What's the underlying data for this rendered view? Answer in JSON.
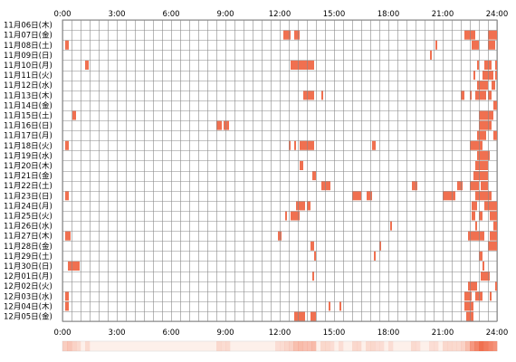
{
  "chart_data": {
    "type": "heatmap",
    "title": "",
    "x_ticks": [
      "0:00",
      "3:00",
      "6:00",
      "9:00",
      "12:00",
      "15:00",
      "18:00",
      "21:00",
      "24:00"
    ],
    "x_range_hours": [
      0,
      24
    ],
    "rows": [
      {
        "label": "11月06日(木)",
        "events": []
      },
      {
        "label": "11月07日(金)",
        "events": [
          [
            12.2,
            12.6
          ],
          [
            12.8,
            13.1
          ],
          [
            22.2,
            22.8
          ],
          [
            23.5,
            24.0
          ]
        ]
      },
      {
        "label": "11月08日(土)",
        "events": [
          [
            0.15,
            0.35
          ],
          [
            20.6,
            20.7
          ],
          [
            22.6,
            23.0
          ],
          [
            23.5,
            23.9
          ]
        ]
      },
      {
        "label": "11月09日(日)",
        "events": [
          [
            20.3,
            20.4
          ]
        ]
      },
      {
        "label": "11月10日(月)",
        "events": [
          [
            1.25,
            1.45
          ],
          [
            12.6,
            13.9
          ],
          [
            22.9,
            23.0
          ],
          [
            23.3,
            23.7
          ],
          [
            23.9,
            24.0
          ]
        ]
      },
      {
        "label": "11月11日(火)",
        "events": [
          [
            22.7,
            22.8
          ],
          [
            23.2,
            23.8
          ],
          [
            23.9,
            24.0
          ]
        ]
      },
      {
        "label": "11月12日(水)",
        "events": [
          [
            22.9,
            23.5
          ],
          [
            23.7,
            23.9
          ]
        ]
      },
      {
        "label": "11月13日(木)",
        "events": [
          [
            13.3,
            13.9
          ],
          [
            14.3,
            14.4
          ],
          [
            22.0,
            22.2
          ],
          [
            22.5,
            22.6
          ],
          [
            22.8,
            23.4
          ],
          [
            23.5,
            23.7
          ]
        ]
      },
      {
        "label": "11月14日(金)",
        "events": [
          [
            23.8,
            24.0
          ]
        ]
      },
      {
        "label": "11月15日(土)",
        "events": [
          [
            0.55,
            0.75
          ],
          [
            23.0,
            23.8
          ]
        ]
      },
      {
        "label": "11月16日(日)",
        "events": [
          [
            8.5,
            8.8
          ],
          [
            8.9,
            9.2
          ],
          [
            23.0,
            23.7
          ]
        ]
      },
      {
        "label": "11月17日(月)",
        "events": [
          [
            22.9,
            23.4
          ],
          [
            23.8,
            24.0
          ]
        ]
      },
      {
        "label": "11月18日(火)",
        "events": [
          [
            0.15,
            0.35
          ],
          [
            12.5,
            12.6
          ],
          [
            12.8,
            12.9
          ],
          [
            13.1,
            13.9
          ],
          [
            17.1,
            17.3
          ],
          [
            22.5,
            23.2
          ]
        ]
      },
      {
        "label": "11月19日(水)",
        "events": [
          [
            22.9,
            23.6
          ]
        ]
      },
      {
        "label": "11月20日(木)",
        "events": [
          [
            13.1,
            13.3
          ],
          [
            22.8,
            23.5
          ]
        ]
      },
      {
        "label": "11月21日(金)",
        "events": [
          [
            13.8,
            14.0
          ],
          [
            22.7,
            23.5
          ]
        ]
      },
      {
        "label": "11月22日(土)",
        "events": [
          [
            14.3,
            14.8
          ],
          [
            19.3,
            19.6
          ],
          [
            21.8,
            22.1
          ],
          [
            22.5,
            23.0
          ],
          [
            23.1,
            23.5
          ]
        ]
      },
      {
        "label": "11月23日(日)",
        "events": [
          [
            0.15,
            0.35
          ],
          [
            16.0,
            16.5
          ],
          [
            16.8,
            17.1
          ],
          [
            21.0,
            21.7
          ],
          [
            22.8,
            23.7
          ]
        ]
      },
      {
        "label": "11月24日(月)",
        "events": [
          [
            12.9,
            13.4
          ],
          [
            13.5,
            13.7
          ],
          [
            22.6,
            22.9
          ],
          [
            23.3,
            24.0
          ]
        ]
      },
      {
        "label": "11月25日(火)",
        "events": [
          [
            12.3,
            12.4
          ],
          [
            12.6,
            13.1
          ],
          [
            22.6,
            22.8
          ],
          [
            23.0,
            23.2
          ],
          [
            23.6,
            24.0
          ]
        ]
      },
      {
        "label": "11月26日(水)",
        "events": [
          [
            18.1,
            18.2
          ],
          [
            22.8,
            22.9
          ],
          [
            23.8,
            24.0
          ]
        ]
      },
      {
        "label": "11月27日(木)",
        "events": [
          [
            0.15,
            0.45
          ],
          [
            11.9,
            12.1
          ],
          [
            22.4,
            23.3
          ],
          [
            23.6,
            24.0
          ]
        ]
      },
      {
        "label": "11月28日(金)",
        "events": [
          [
            13.7,
            13.9
          ],
          [
            17.5,
            17.6
          ],
          [
            23.5,
            24.0
          ]
        ]
      },
      {
        "label": "11月29日(土)",
        "events": [
          [
            13.9,
            14.0
          ],
          [
            17.2,
            17.3
          ],
          [
            23.0,
            23.2
          ]
        ]
      },
      {
        "label": "11月30日(日)",
        "events": [
          [
            0.3,
            0.95
          ],
          [
            23.2,
            23.3
          ]
        ]
      },
      {
        "label": "12月01日(月)",
        "events": [
          [
            13.8,
            13.9
          ],
          [
            23.1,
            23.6
          ]
        ]
      },
      {
        "label": "12月02日(火)",
        "events": [
          [
            22.4,
            22.9
          ],
          [
            23.9,
            24.0
          ]
        ]
      },
      {
        "label": "12月03日(水)",
        "events": [
          [
            0.15,
            0.35
          ],
          [
            22.2,
            22.6
          ],
          [
            22.8,
            23.2
          ],
          [
            23.6,
            23.7
          ]
        ]
      },
      {
        "label": "12月04日(木)",
        "events": [
          [
            0.15,
            0.35
          ],
          [
            14.7,
            14.8
          ],
          [
            15.3,
            15.4
          ],
          [
            22.2,
            22.7
          ]
        ]
      },
      {
        "label": "12月05日(金)",
        "events": [
          [
            12.8,
            13.4
          ],
          [
            13.7,
            14.0
          ],
          [
            22.3,
            22.7
          ]
        ]
      }
    ],
    "colors": {
      "event_fill": "#f07050",
      "grid_line": "#888888",
      "summary_base": "#fdf0ea"
    }
  }
}
